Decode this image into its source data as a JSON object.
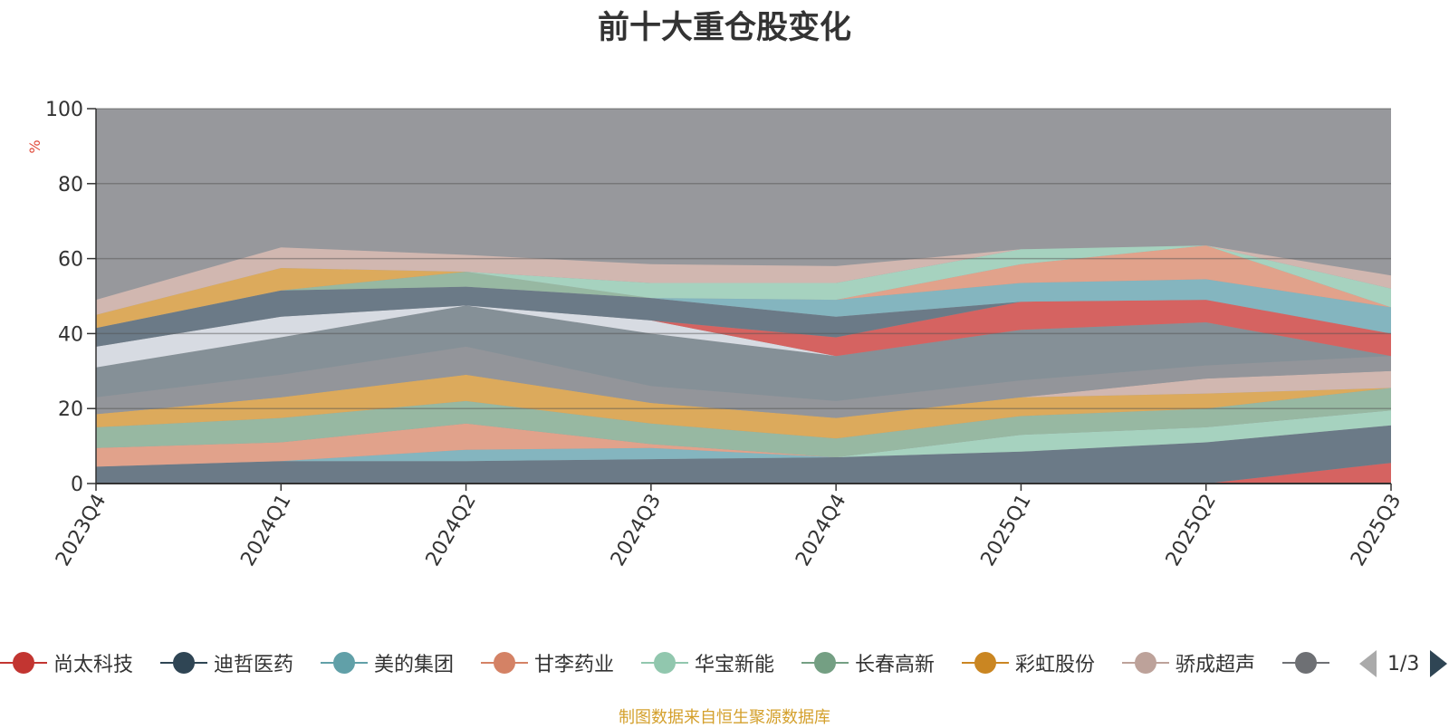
{
  "title": "前十大重仓股变化",
  "source_note": "制图数据来自恒生聚源数据库",
  "pager": {
    "text": "1/3"
  },
  "chart_data": {
    "type": "area",
    "title": "前十大重仓股变化",
    "ylabel": "%",
    "ylim": [
      0,
      100
    ],
    "yticks": [
      0,
      20,
      40,
      60,
      80,
      100
    ],
    "grid": true,
    "stacked": true,
    "x": [
      "2023Q4",
      "2024Q1",
      "2024Q2",
      "2024Q3",
      "2024Q4",
      "2025Q1",
      "2025Q2",
      "2025Q3"
    ],
    "background_color": "#97989c",
    "layers": [
      {
        "color": "#d56361",
        "values": [
          0,
          0,
          0,
          0,
          0,
          0,
          0,
          5.5
        ]
      },
      {
        "color": "#6b7a87",
        "values": [
          4.5,
          6,
          6,
          6.5,
          7,
          8.5,
          11,
          10
        ]
      },
      {
        "color": "#84b5bf",
        "values": [
          0,
          0,
          3,
          3,
          0,
          0,
          0,
          0
        ]
      },
      {
        "color": "#e1a28b",
        "values": [
          5,
          5,
          7,
          1,
          0,
          0,
          0,
          0
        ]
      },
      {
        "color": "#a6d2bf",
        "values": [
          0,
          0,
          0,
          0,
          0,
          4.5,
          4,
          4
        ]
      },
      {
        "color": "#97b8a2",
        "values": [
          5.5,
          6.5,
          6,
          5.5,
          5,
          5,
          5,
          6
        ]
      },
      {
        "color": "#dcaa5c",
        "values": [
          3.5,
          5.5,
          7,
          5.5,
          5.5,
          5,
          4,
          0
        ]
      },
      {
        "color": "#d1b7b0",
        "values": [
          0,
          0,
          0,
          0,
          0,
          0,
          4,
          4.5
        ]
      },
      {
        "color": "#93959a",
        "values": [
          4.5,
          6,
          7.5,
          4.5,
          4.5,
          4.5,
          3.5,
          4
        ]
      },
      {
        "color": "#859097",
        "values": [
          8,
          10,
          11,
          14,
          12,
          13.5,
          11.5,
          0
        ]
      },
      {
        "color": "#d7dbe2",
        "values": [
          5.5,
          5.5,
          0,
          3.5,
          0,
          0,
          0,
          0
        ]
      },
      {
        "color": "#d56361",
        "values": [
          0,
          0,
          0,
          0,
          5,
          7.5,
          6,
          6
        ]
      },
      {
        "color": "#6b7a87",
        "values": [
          5,
          7,
          5,
          6,
          5.5,
          0,
          0,
          0
        ]
      },
      {
        "color": "#84b5bf",
        "values": [
          0,
          0,
          0,
          0,
          4.5,
          5,
          5.5,
          7
        ]
      },
      {
        "color": "#e1a28b",
        "values": [
          0,
          0,
          0,
          0,
          0,
          5,
          9,
          0
        ]
      },
      {
        "color": "#97b8a2",
        "values": [
          0,
          0,
          4,
          0,
          0,
          0,
          0,
          0
        ]
      },
      {
        "color": "#a6d2bf",
        "values": [
          0,
          0,
          0,
          4,
          4.5,
          4,
          0,
          5
        ]
      },
      {
        "color": "#dcaa5c",
        "values": [
          3.5,
          6,
          0,
          0,
          0,
          0,
          0,
          0
        ]
      },
      {
        "color": "#d1b7b0",
        "values": [
          4,
          5.5,
          4.5,
          5,
          4.5,
          0,
          0,
          3.5
        ]
      }
    ],
    "legend": [
      {
        "name": "尚太科技",
        "color": "#c23531"
      },
      {
        "name": "迪哲医药",
        "color": "#2f4554"
      },
      {
        "name": "美的集团",
        "color": "#61a0a8"
      },
      {
        "name": "甘李药业",
        "color": "#d48265"
      },
      {
        "name": "华宝新能",
        "color": "#91c7ae"
      },
      {
        "name": "长春高新",
        "color": "#749f83"
      },
      {
        "name": "彩虹股份",
        "color": "#ca8622"
      },
      {
        "name": "骄成超声",
        "color": "#bda29a"
      },
      {
        "name": "",
        "color": "#6e7074"
      }
    ]
  }
}
